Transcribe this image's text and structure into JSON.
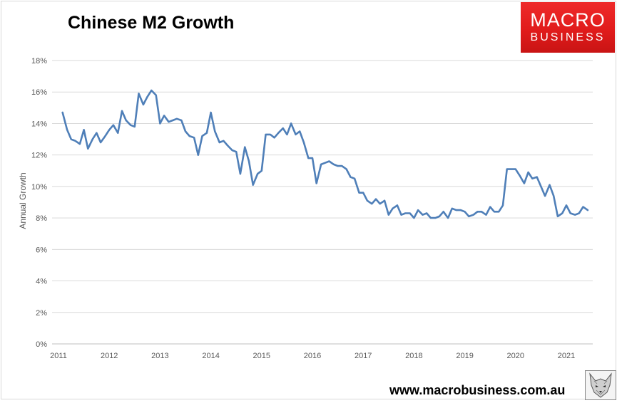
{
  "header": {
    "title": "Chinese M2 Growth"
  },
  "logo": {
    "line1": "MACRO",
    "line2": "BUSINESS",
    "color": "#e31b1b"
  },
  "footer": {
    "website": "www.macrobusiness.com.au"
  },
  "chart_data": {
    "type": "line",
    "title": "Chinese M2 Growth",
    "xlabel": "",
    "ylabel": "Annual Growth",
    "ylim": [
      0,
      18
    ],
    "y_tick_labels": [
      "0%",
      "2%",
      "4%",
      "6%",
      "8%",
      "10%",
      "12%",
      "14%",
      "16%",
      "18%"
    ],
    "xlim": [
      2011,
      2021.7
    ],
    "x_tick_labels": [
      "2011",
      "2012",
      "2013",
      "2014",
      "2015",
      "2016",
      "2017",
      "2018",
      "2019",
      "2020",
      "2021"
    ],
    "grid": true,
    "legend": "none",
    "line_color": "#4f7fb8",
    "series": [
      {
        "x": [
          2011.08,
          2011.17,
          2011.25,
          2011.33,
          2011.42,
          2011.5,
          2011.58,
          2011.67,
          2011.75,
          2011.83,
          2011.92,
          2012.0,
          2012.08,
          2012.17,
          2012.25,
          2012.33,
          2012.42,
          2012.5,
          2012.58,
          2012.67,
          2012.75,
          2012.83,
          2012.92,
          2013.0,
          2013.08,
          2013.17,
          2013.25,
          2013.33,
          2013.42,
          2013.5,
          2013.58,
          2013.67,
          2013.75,
          2013.83,
          2013.92,
          2014.0,
          2014.08,
          2014.17,
          2014.25,
          2014.33,
          2014.42,
          2014.5,
          2014.58,
          2014.67,
          2014.75,
          2014.83,
          2014.92,
          2015.0,
          2015.08,
          2015.17,
          2015.25,
          2015.33,
          2015.42,
          2015.5,
          2015.58,
          2015.67,
          2015.75,
          2015.83,
          2015.92,
          2016.0,
          2016.08,
          2016.17,
          2016.25,
          2016.33,
          2016.42,
          2016.5,
          2016.58,
          2016.67,
          2016.75,
          2016.83,
          2016.92,
          2017.0,
          2017.08,
          2017.17,
          2017.25,
          2017.33,
          2017.42,
          2017.5,
          2017.58,
          2017.67,
          2017.75,
          2017.83,
          2017.92,
          2018.0,
          2018.08,
          2018.17,
          2018.25,
          2018.33,
          2018.42,
          2018.5,
          2018.58,
          2018.67,
          2018.75,
          2018.83,
          2018.92,
          2019.0,
          2019.08,
          2019.17,
          2019.25,
          2019.33,
          2019.42,
          2019.5,
          2019.58,
          2019.67,
          2019.75,
          2019.83,
          2019.92,
          2020.0,
          2020.08,
          2020.17,
          2020.25,
          2020.33,
          2020.42,
          2020.5,
          2020.58,
          2020.67,
          2020.75,
          2020.83,
          2020.92,
          2021.0,
          2021.08,
          2021.17,
          2021.25,
          2021.33,
          2021.42
        ],
        "values": [
          14.7,
          13.6,
          13.0,
          12.9,
          12.7,
          13.6,
          12.4,
          13.0,
          13.4,
          12.8,
          13.2,
          13.6,
          13.9,
          13.4,
          14.8,
          14.2,
          13.9,
          13.8,
          15.9,
          15.2,
          15.7,
          16.1,
          15.8,
          14.0,
          14.5,
          14.1,
          14.2,
          14.3,
          14.2,
          13.5,
          13.2,
          13.1,
          12.0,
          13.2,
          13.4,
          14.7,
          13.5,
          12.8,
          12.9,
          12.6,
          12.3,
          12.2,
          10.8,
          12.5,
          11.6,
          10.1,
          10.8,
          11.0,
          13.3,
          13.3,
          13.1,
          13.4,
          13.7,
          13.3,
          14.0,
          13.3,
          13.5,
          12.8,
          11.8,
          11.8,
          10.2,
          11.4,
          11.5,
          11.6,
          11.4,
          11.3,
          11.3,
          11.1,
          10.6,
          10.5,
          9.6,
          9.6,
          9.1,
          8.9,
          9.2,
          8.9,
          9.1,
          8.2,
          8.6,
          8.8,
          8.2,
          8.3,
          8.3,
          8.0,
          8.5,
          8.2,
          8.3,
          8.0,
          8.0,
          8.1,
          8.4,
          8.0,
          8.6,
          8.5,
          8.5,
          8.4,
          8.1,
          8.2,
          8.4,
          8.4,
          8.2,
          8.7,
          8.4,
          8.4,
          8.8,
          11.1,
          11.1,
          11.1,
          10.7,
          10.2,
          10.9,
          10.5,
          10.6,
          10.0,
          9.4,
          10.1,
          9.4,
          8.1,
          8.3,
          8.8,
          8.3,
          8.2,
          8.3,
          8.7,
          8.5
        ]
      }
    ]
  }
}
